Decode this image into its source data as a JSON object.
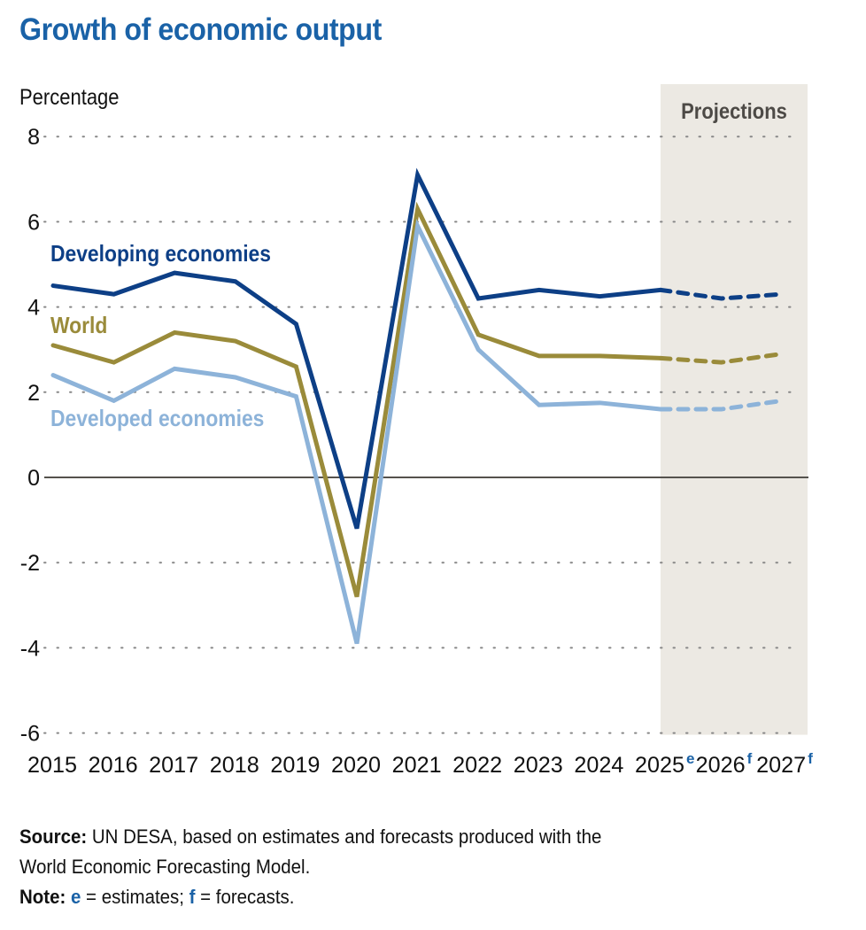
{
  "chart_data": {
    "type": "line",
    "title": "Growth of economic output",
    "ylabel": "Percentage",
    "xlabel": "",
    "ylim": [
      -6,
      8
    ],
    "yticks": [
      8,
      6,
      4,
      2,
      0,
      -2,
      -4,
      -6
    ],
    "grid": true,
    "x": [
      "2015",
      "2016",
      "2017",
      "2018",
      "2019",
      "2020",
      "2021",
      "2022",
      "2023",
      "2024",
      "2025",
      "2026",
      "2027"
    ],
    "x_superscripts": [
      "",
      "",
      "",
      "",
      "",
      "",
      "",
      "",
      "",
      "",
      "e",
      "f",
      "f"
    ],
    "projection_band": {
      "label": "Projections",
      "from": "2025",
      "to": "2027"
    },
    "projection_start_index": 10,
    "series": [
      {
        "name": "Developing economies",
        "color": "#0d3f86",
        "values": [
          4.5,
          4.3,
          4.8,
          4.6,
          3.6,
          -1.2,
          7.1,
          4.2,
          4.4,
          4.25,
          4.4,
          4.2,
          4.3
        ]
      },
      {
        "name": "World",
        "color": "#9a8b3a",
        "values": [
          3.1,
          2.7,
          3.4,
          3.2,
          2.6,
          -2.8,
          6.3,
          3.35,
          2.85,
          2.85,
          2.8,
          2.7,
          2.9
        ]
      },
      {
        "name": "Developed economies",
        "color": "#8db3d9",
        "values": [
          2.4,
          1.8,
          2.55,
          2.35,
          1.9,
          -3.9,
          5.9,
          3.0,
          1.7,
          1.75,
          1.6,
          1.6,
          1.8
        ]
      }
    ]
  },
  "footer": {
    "source_label": "Source:",
    "source_text": " UN DESA, based on estimates and forecasts produced with the",
    "source_text_line2": "World Economic Forecasting Model.",
    "note_label": "Note:",
    "note_e": "e",
    "note_e_text": " = estimates; ",
    "note_f": "f",
    "note_f_text": " = forecasts."
  }
}
